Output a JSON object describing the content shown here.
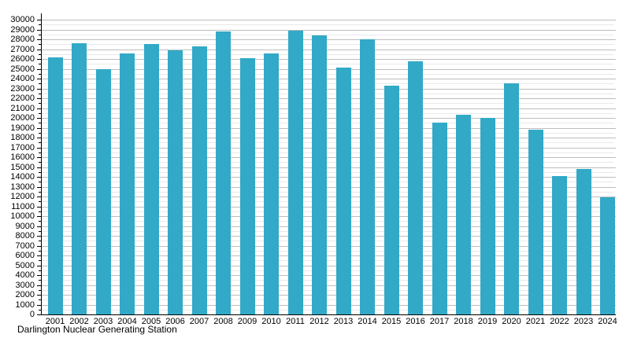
{
  "caption": "Darlington Nuclear Generating Station",
  "chart_data": {
    "type": "bar",
    "title": "",
    "xlabel": "",
    "ylabel": "",
    "categories": [
      "2001",
      "2002",
      "2003",
      "2004",
      "2005",
      "2006",
      "2007",
      "2008",
      "2009",
      "2010",
      "2011",
      "2012",
      "2013",
      "2014",
      "2015",
      "2016",
      "2017",
      "2018",
      "2019",
      "2020",
      "2021",
      "2022",
      "2023",
      "2024"
    ],
    "values": [
      26200,
      27600,
      25000,
      26600,
      27500,
      26900,
      27300,
      28800,
      26100,
      26600,
      28900,
      28400,
      25100,
      28000,
      23300,
      25800,
      19500,
      20300,
      20000,
      23500,
      18800,
      14100,
      14800,
      11900
    ],
    "ylim": [
      0,
      30000
    ],
    "y_major_tick_step": 1000,
    "y_minor_tick_step": 500,
    "grid": true,
    "legend": "none",
    "bar_color": "#31a9c7",
    "major_grid_color": "#bdbdbd",
    "minor_grid_color": "#e9e9e9",
    "axis_color": "#000000"
  }
}
